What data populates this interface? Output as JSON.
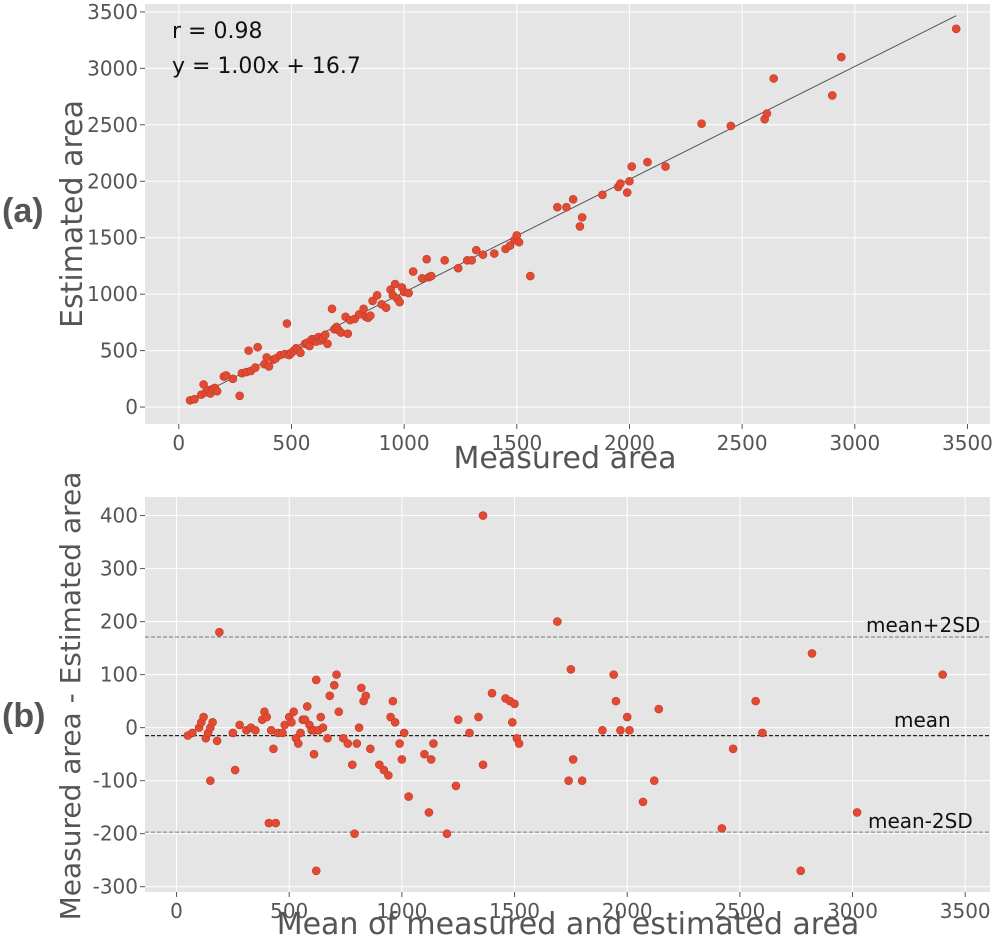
{
  "chart_data": [
    {
      "panel": "(a)",
      "type": "scatter",
      "xlabel": "Measured area",
      "ylabel": "Estimated area",
      "xlim": [
        -150,
        3600
      ],
      "ylim": [
        -150,
        3570
      ],
      "xticks": [
        0,
        500,
        1000,
        1500,
        2000,
        2500,
        3000,
        3500
      ],
      "yticks": [
        0,
        500,
        1000,
        1500,
        2000,
        2500,
        3000,
        3500
      ],
      "grid": true,
      "annotations": [
        "r = 0.98",
        "y = 1.00x + 16.7"
      ],
      "fit_line": {
        "slope": 1.0,
        "intercept": 16.7,
        "x_range": [
          50,
          3450
        ]
      },
      "points": [
        [
          50,
          60
        ],
        [
          70,
          70
        ],
        [
          100,
          110
        ],
        [
          110,
          200
        ],
        [
          120,
          130
        ],
        [
          130,
          150
        ],
        [
          140,
          120
        ],
        [
          150,
          160
        ],
        [
          160,
          170
        ],
        [
          170,
          140
        ],
        [
          200,
          270
        ],
        [
          210,
          280
        ],
        [
          240,
          250
        ],
        [
          270,
          100
        ],
        [
          280,
          300
        ],
        [
          300,
          310
        ],
        [
          310,
          500
        ],
        [
          320,
          320
        ],
        [
          340,
          350
        ],
        [
          350,
          530
        ],
        [
          380,
          380
        ],
        [
          390,
          440
        ],
        [
          400,
          360
        ],
        [
          420,
          420
        ],
        [
          430,
          430
        ],
        [
          450,
          460
        ],
        [
          470,
          470
        ],
        [
          480,
          740
        ],
        [
          490,
          460
        ],
        [
          500,
          480
        ],
        [
          510,
          500
        ],
        [
          520,
          520
        ],
        [
          530,
          510
        ],
        [
          540,
          480
        ],
        [
          560,
          560
        ],
        [
          570,
          570
        ],
        [
          580,
          540
        ],
        [
          590,
          600
        ],
        [
          600,
          600
        ],
        [
          610,
          580
        ],
        [
          620,
          620
        ],
        [
          630,
          590
        ],
        [
          640,
          610
        ],
        [
          650,
          640
        ],
        [
          660,
          560
        ],
        [
          680,
          870
        ],
        [
          690,
          690
        ],
        [
          700,
          710
        ],
        [
          710,
          680
        ],
        [
          720,
          660
        ],
        [
          740,
          800
        ],
        [
          750,
          650
        ],
        [
          760,
          770
        ],
        [
          780,
          780
        ],
        [
          800,
          820
        ],
        [
          820,
          870
        ],
        [
          830,
          800
        ],
        [
          840,
          790
        ],
        [
          850,
          810
        ],
        [
          860,
          940
        ],
        [
          880,
          990
        ],
        [
          900,
          910
        ],
        [
          920,
          880
        ],
        [
          940,
          1040
        ],
        [
          950,
          990
        ],
        [
          960,
          1090
        ],
        [
          970,
          960
        ],
        [
          980,
          930
        ],
        [
          990,
          1060
        ],
        [
          1000,
          1020
        ],
        [
          1020,
          1010
        ],
        [
          1040,
          1200
        ],
        [
          1080,
          1140
        ],
        [
          1100,
          1310
        ],
        [
          1110,
          1150
        ],
        [
          1120,
          1160
        ],
        [
          1180,
          1300
        ],
        [
          1240,
          1230
        ],
        [
          1280,
          1300
        ],
        [
          1300,
          1300
        ],
        [
          1320,
          1390
        ],
        [
          1350,
          1350
        ],
        [
          1400,
          1360
        ],
        [
          1450,
          1400
        ],
        [
          1470,
          1430
        ],
        [
          1490,
          1480
        ],
        [
          1500,
          1520
        ],
        [
          1510,
          1460
        ],
        [
          1560,
          1160
        ],
        [
          1680,
          1770
        ],
        [
          1720,
          1770
        ],
        [
          1750,
          1840
        ],
        [
          1780,
          1600
        ],
        [
          1790,
          1680
        ],
        [
          1880,
          1880
        ],
        [
          1950,
          1950
        ],
        [
          1960,
          1980
        ],
        [
          1990,
          1900
        ],
        [
          2000,
          2000
        ],
        [
          2010,
          2130
        ],
        [
          2080,
          2170
        ],
        [
          2160,
          2130
        ],
        [
          2320,
          2510
        ],
        [
          2450,
          2490
        ],
        [
          2600,
          2550
        ],
        [
          2610,
          2600
        ],
        [
          2640,
          2910
        ],
        [
          2900,
          2760
        ],
        [
          2940,
          3100
        ],
        [
          3450,
          3350
        ]
      ]
    },
    {
      "panel": "(b)",
      "type": "scatter",
      "xlabel": "Mean of measured and estimated area",
      "ylabel": "Measured area - Estimated area",
      "xlim": [
        -140,
        3610
      ],
      "ylim": [
        -310,
        435
      ],
      "xticks": [
        0,
        500,
        1000,
        1500,
        2000,
        2500,
        3000,
        3500
      ],
      "yticks": [
        -300,
        -200,
        -100,
        0,
        100,
        200,
        300,
        400
      ],
      "grid": true,
      "reference_lines": [
        {
          "label": "mean+2SD",
          "y": 171,
          "style": "dashed"
        },
        {
          "label": "mean",
          "y": -15,
          "style": "dashed-dark"
        },
        {
          "label": "mean-2SD",
          "y": -197,
          "style": "dashed"
        }
      ],
      "points": [
        [
          50,
          -15
        ],
        [
          70,
          -10
        ],
        [
          100,
          0
        ],
        [
          110,
          10
        ],
        [
          120,
          20
        ],
        [
          130,
          -20
        ],
        [
          140,
          -10
        ],
        [
          150,
          -100
        ],
        [
          150,
          0
        ],
        [
          160,
          10
        ],
        [
          180,
          -25
        ],
        [
          190,
          180
        ],
        [
          250,
          -10
        ],
        [
          260,
          -80
        ],
        [
          280,
          5
        ],
        [
          310,
          -5
        ],
        [
          330,
          0
        ],
        [
          350,
          -5
        ],
        [
          380,
          15
        ],
        [
          390,
          30
        ],
        [
          400,
          20
        ],
        [
          410,
          -180
        ],
        [
          420,
          -5
        ],
        [
          430,
          -40
        ],
        [
          440,
          -180
        ],
        [
          450,
          -10
        ],
        [
          470,
          -10
        ],
        [
          480,
          5
        ],
        [
          500,
          20
        ],
        [
          510,
          10
        ],
        [
          520,
          30
        ],
        [
          530,
          -20
        ],
        [
          540,
          -30
        ],
        [
          550,
          -10
        ],
        [
          560,
          15
        ],
        [
          570,
          15
        ],
        [
          580,
          40
        ],
        [
          590,
          5
        ],
        [
          600,
          -5
        ],
        [
          610,
          -5
        ],
        [
          610,
          -50
        ],
        [
          620,
          -270
        ],
        [
          620,
          90
        ],
        [
          630,
          -5
        ],
        [
          640,
          20
        ],
        [
          650,
          0
        ],
        [
          670,
          -20
        ],
        [
          680,
          60
        ],
        [
          700,
          80
        ],
        [
          710,
          100
        ],
        [
          720,
          30
        ],
        [
          740,
          -20
        ],
        [
          760,
          -30
        ],
        [
          780,
          -70
        ],
        [
          790,
          -200
        ],
        [
          800,
          -30
        ],
        [
          810,
          0
        ],
        [
          820,
          75
        ],
        [
          830,
          50
        ],
        [
          840,
          60
        ],
        [
          860,
          -40
        ],
        [
          900,
          -70
        ],
        [
          920,
          -80
        ],
        [
          940,
          -90
        ],
        [
          950,
          20
        ],
        [
          960,
          50
        ],
        [
          970,
          10
        ],
        [
          990,
          -30
        ],
        [
          1000,
          -60
        ],
        [
          1010,
          -10
        ],
        [
          1030,
          -130
        ],
        [
          1100,
          -50
        ],
        [
          1120,
          -160
        ],
        [
          1130,
          -60
        ],
        [
          1140,
          -30
        ],
        [
          1200,
          -200
        ],
        [
          1240,
          -110
        ],
        [
          1250,
          15
        ],
        [
          1300,
          -10
        ],
        [
          1340,
          20
        ],
        [
          1360,
          -70
        ],
        [
          1360,
          400
        ],
        [
          1400,
          65
        ],
        [
          1460,
          55
        ],
        [
          1480,
          50
        ],
        [
          1490,
          10
        ],
        [
          1500,
          45
        ],
        [
          1510,
          -20
        ],
        [
          1520,
          -30
        ],
        [
          1690,
          200
        ],
        [
          1740,
          -100
        ],
        [
          1750,
          110
        ],
        [
          1760,
          -60
        ],
        [
          1800,
          -100
        ],
        [
          1890,
          -5
        ],
        [
          1940,
          100
        ],
        [
          1950,
          50
        ],
        [
          1970,
          -5
        ],
        [
          2000,
          20
        ],
        [
          2010,
          -5
        ],
        [
          2070,
          -140
        ],
        [
          2120,
          -100
        ],
        [
          2140,
          35
        ],
        [
          2420,
          -190
        ],
        [
          2470,
          -40
        ],
        [
          2570,
          50
        ],
        [
          2600,
          -10
        ],
        [
          2770,
          -270
        ],
        [
          2820,
          140
        ],
        [
          3020,
          -160
        ],
        [
          3400,
          100
        ]
      ]
    }
  ]
}
